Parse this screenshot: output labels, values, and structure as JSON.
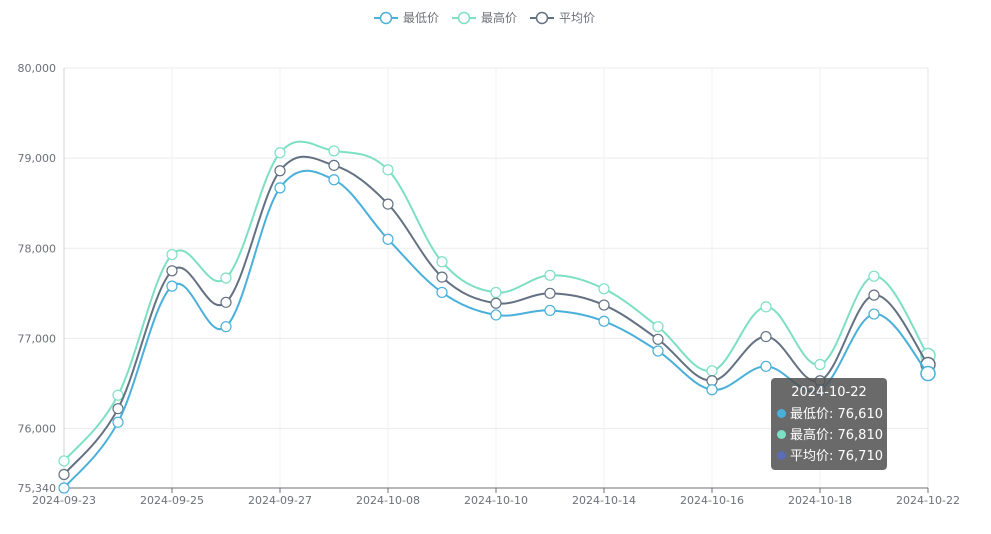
{
  "chart_data": {
    "type": "line",
    "x": [
      "2024-09-23",
      "2024-09-24",
      "2024-09-25",
      "2024-09-26",
      "2024-09-27",
      "2024-10-07",
      "2024-10-08",
      "2024-10-09",
      "2024-10-10",
      "2024-10-11",
      "2024-10-14",
      "2024-10-15",
      "2024-10-16",
      "2024-10-17",
      "2024-10-18",
      "2024-10-21",
      "2024-10-22"
    ],
    "x_tick_labels": [
      "2024-09-23",
      "2024-09-25",
      "2024-09-27",
      "2024-10-08",
      "2024-10-10",
      "2024-10-14",
      "2024-10-16",
      "2024-10-18",
      "2024-10-22"
    ],
    "y_tick_labels": [
      "75,340",
      "76,000",
      "77,000",
      "78,000",
      "79,000",
      "80,000"
    ],
    "ylim": [
      75340,
      80000
    ],
    "series": [
      {
        "name": "最低价",
        "color": "#4ab0d9",
        "values": [
          75340,
          76070,
          77580,
          77130,
          78670,
          78760,
          78100,
          77510,
          77260,
          77310,
          77190,
          76860,
          76430,
          76690,
          76430,
          77270,
          76610
        ]
      },
      {
        "name": "最高价",
        "color": "#7ddfc3",
        "values": [
          75640,
          76370,
          77930,
          77670,
          79060,
          79080,
          78870,
          77850,
          77510,
          77700,
          77550,
          77130,
          76640,
          77350,
          76710,
          77690,
          76810
        ]
      },
      {
        "name": "平均价",
        "color": "#637183",
        "values": [
          75490,
          76220,
          77750,
          77400,
          78860,
          78920,
          78490,
          77680,
          77390,
          77500,
          77370,
          76990,
          76530,
          77020,
          76530,
          77480,
          76710
        ]
      }
    ],
    "legend_position": "top-center",
    "grid": true
  },
  "tooltip": {
    "title": "2024-10-22",
    "rows": [
      {
        "label": "最低价: 76,610",
        "color": "#4ab0d9"
      },
      {
        "label": "最高价: 76,810",
        "color": "#7ddfc3"
      },
      {
        "label": "平均价: 76,710",
        "color": "#5b6bb5"
      }
    ]
  }
}
